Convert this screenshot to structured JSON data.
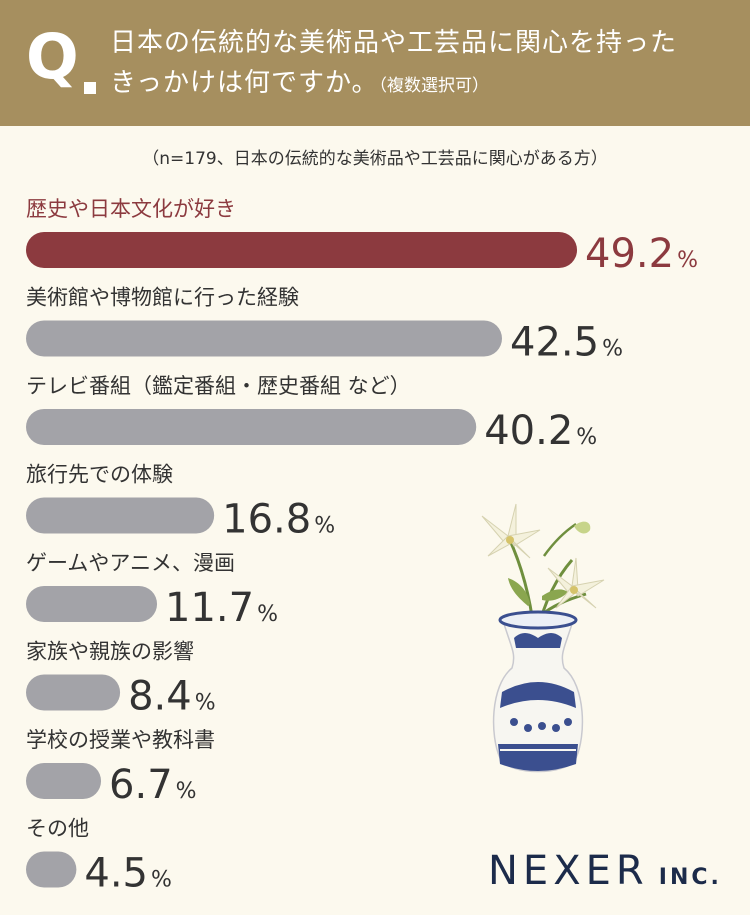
{
  "header": {
    "q_label": "Q",
    "question_line1": "日本の伝統的な美術品や工芸品に関心を持った",
    "question_line2": "きっかけは何ですか。",
    "question_note": "（複数選択可）"
  },
  "sample_note": "（n=179、日本の伝統的な美術品や工芸品に関心がある方）",
  "chart_data": {
    "type": "bar",
    "orientation": "horizontal",
    "unit": "%",
    "categories": [
      "歴史や日本文化が好き",
      "美術館や博物館に行った経験",
      "テレビ番組（鑑定番組・歴史番組 など）",
      "旅行先での体験",
      "ゲームやアニメ、漫画",
      "家族や親族の影響",
      "学校の授業や教科書",
      "その他"
    ],
    "values": [
      49.2,
      42.5,
      40.2,
      16.8,
      11.7,
      8.4,
      6.7,
      4.5
    ],
    "value_labels": [
      "49.2",
      "42.5",
      "40.2",
      "16.8",
      "11.7",
      "8.4",
      "6.7",
      "4.5"
    ],
    "highlight_index": 0,
    "colors": {
      "highlight": "#8c3a3f",
      "bar": "#a3a3a8",
      "highlight_label": "#8c3a3f",
      "label": "#333333"
    },
    "grid": false,
    "legend": "none"
  },
  "logo": {
    "main": "NEXER",
    "suffix": "INC."
  },
  "decoration": {
    "icon": "lily-vase-icon"
  }
}
